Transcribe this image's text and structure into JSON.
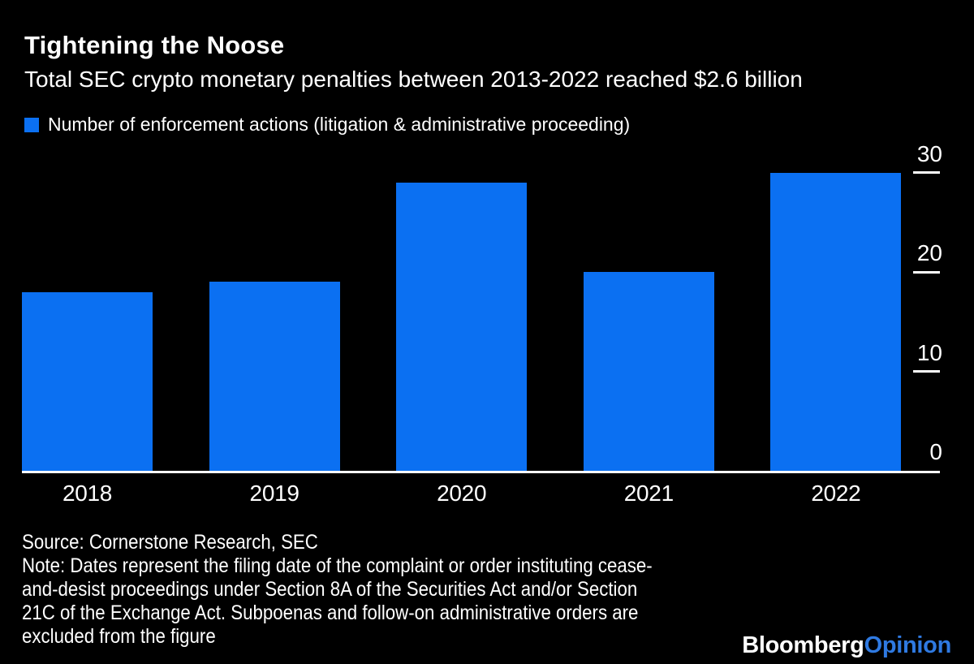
{
  "header": {
    "title": "Tightening the Noose",
    "subtitle": "Total SEC crypto monetary penalties between 2013-2022 reached $2.6 billion"
  },
  "legend": {
    "label": "Number of enforcement actions (litigation & administrative proceeding)"
  },
  "chart_data": {
    "type": "bar",
    "title": "Tightening the Noose",
    "subtitle": "Total SEC crypto monetary penalties between 2013-2022 reached $2.6 billion",
    "categories": [
      "2018",
      "2019",
      "2020",
      "2021",
      "2022"
    ],
    "series": [
      {
        "name": "Number of enforcement actions (litigation & administrative proceeding)",
        "values": [
          18,
          19,
          29,
          20,
          30
        ]
      }
    ],
    "xlabel": "",
    "ylabel": "",
    "ylim": [
      0,
      30
    ],
    "yticks": [
      0,
      10,
      20,
      30
    ],
    "y_axis_side": "right",
    "grid": false,
    "legend_position": "top-left"
  },
  "footer": {
    "source": "Source: Cornerstone Research, SEC",
    "note_lines": [
      "Note: Dates represent the filing date of the complaint or order instituting cease-",
      "and-desist proceedings under Section 8A of the Securities Act and/or Section",
      "21C of the Exchange Act. Subpoenas and follow-on administrative orders are",
      "excluded from the figure"
    ]
  },
  "logo": {
    "bloomberg": "Bloomberg",
    "opinion": "Opinion"
  },
  "colors": {
    "background": "#000000",
    "text": "#ffffff",
    "accent": "#0b70f2",
    "opinion_blue": "#2f7ae2"
  }
}
